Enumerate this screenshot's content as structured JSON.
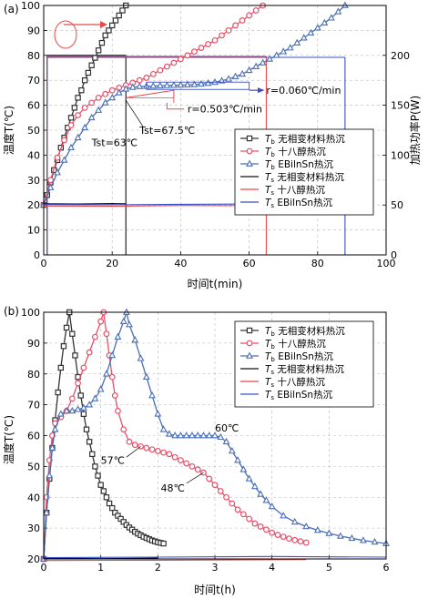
{
  "chart_data": [
    {
      "panel_label": "(a)",
      "type": "line",
      "xlabel": "时间t(min)",
      "ylabel": "温度T(℃)",
      "y2label": "加热功率P(W)",
      "xlim": [
        0,
        100
      ],
      "ylim": [
        0,
        100
      ],
      "y2lim": [
        0,
        250
      ],
      "xticks": [
        "0",
        "20",
        "40",
        "60",
        "80",
        "100"
      ],
      "yticks": [
        "0",
        "10",
        "20",
        "30",
        "40",
        "50",
        "60",
        "70",
        "80",
        "90",
        "100"
      ],
      "y2ticks": [
        "0",
        "50",
        "100",
        "150",
        "200"
      ],
      "legend_position": "center-right",
      "series": [
        {
          "name": "Tb 无相变材料热沉",
          "label_sub": "b",
          "label_rest": " 无相变材料热沉",
          "color": "#333333",
          "marker": "square",
          "x": [
            0,
            1,
            2,
            3,
            4,
            5,
            6,
            7,
            8,
            9,
            10,
            11,
            12,
            13,
            14,
            15,
            16,
            17,
            18,
            19,
            20,
            21,
            22,
            23,
            24
          ],
          "y": [
            20,
            24,
            29,
            34,
            38,
            43,
            47,
            51,
            55,
            59,
            63,
            66,
            70,
            73,
            76,
            79,
            82,
            85,
            88,
            90,
            92,
            94,
            96,
            98,
            100
          ]
        },
        {
          "name": "Tb 十八醇热沉",
          "label_sub": "b",
          "label_rest": " 十八醇热沉",
          "color": "#e8506a",
          "marker": "circle",
          "x": [
            0,
            2,
            4,
            6,
            8,
            10,
            12,
            14,
            16,
            18,
            20,
            22,
            24,
            26,
            28,
            30,
            32,
            34,
            36,
            38,
            40,
            42,
            44,
            46,
            48,
            50,
            52,
            54,
            56,
            58,
            60,
            62,
            64
          ],
          "y": [
            20,
            30,
            39,
            46,
            52,
            56,
            59,
            61,
            63,
            64.5,
            66,
            67,
            68,
            69,
            70,
            71,
            72.5,
            74,
            75.5,
            77,
            78.5,
            80,
            81.5,
            83,
            84.5,
            86,
            88,
            90,
            92,
            94,
            96,
            98,
            100
          ]
        },
        {
          "name": "Tb EBilnSn热沉",
          "label_sub": "b",
          "label_rest": " EBilnSn热沉",
          "color": "#4a6fb5",
          "marker": "triangle",
          "x": [
            0,
            2,
            4,
            6,
            8,
            10,
            12,
            14,
            16,
            18,
            20,
            22,
            24,
            26,
            28,
            30,
            32,
            34,
            36,
            38,
            40,
            42,
            44,
            46,
            48,
            50,
            52,
            54,
            56,
            58,
            60,
            62,
            64,
            66,
            68,
            70,
            72,
            74,
            76,
            78,
            80,
            82,
            84,
            86,
            88
          ],
          "y": [
            20,
            27,
            33,
            38,
            43,
            47,
            51,
            55,
            58,
            61,
            63,
            65,
            66.5,
            67.2,
            67.5,
            67.6,
            67.7,
            67.8,
            67.9,
            68,
            68.1,
            68.2,
            68.3,
            68.5,
            68.8,
            69.2,
            69.8,
            70.5,
            71.5,
            72.5,
            74,
            75.5,
            77,
            78.5,
            80,
            81.5,
            83,
            85,
            87,
            89,
            91,
            93,
            95,
            97.5,
            100
          ]
        },
        {
          "name": "Ts 无相变材料热沉",
          "label_sub": "s",
          "label_rest": " 无相变材料热沉",
          "color": "#111111",
          "marker": "none",
          "x": [
            0,
            10,
            20,
            24
          ],
          "y": [
            20.5,
            20.4,
            20.6,
            20.5
          ]
        },
        {
          "name": "Ts 十八醇热沉",
          "label_sub": "s",
          "label_rest": " 十八醇热沉",
          "color": "#e84a4a",
          "marker": "none",
          "x": [
            0,
            20,
            40,
            64
          ],
          "y": [
            19.6,
            19.5,
            19.8,
            19.7
          ]
        },
        {
          "name": "Ts EBilnSn热沉",
          "label_sub": "s",
          "label_rest": " EBilnSn热沉",
          "color": "#3b4fc8",
          "marker": "none",
          "x": [
            0,
            20,
            40,
            60,
            88
          ],
          "y": [
            20.2,
            20.1,
            20.3,
            20.4,
            20.5
          ]
        }
      ],
      "power_series": [
        {
          "name": "P 无相变材料热沉",
          "color": "#111111",
          "x": [
            1,
            24
          ],
          "y": [
            200,
            200
          ],
          "end_x": 24
        },
        {
          "name": "P 十八醇热沉",
          "color": "#e84a4a",
          "x": [
            1,
            65
          ],
          "y": [
            199,
            199
          ],
          "end_x": 65
        },
        {
          "name": "P EBilnSn热沉",
          "color": "#3b4fc8",
          "x": [
            1,
            88
          ],
          "y": [
            198,
            198
          ],
          "end_x": 88
        }
      ],
      "annotations": [
        {
          "text": "r=0.503℃/min",
          "x": 42,
          "y": 58.5
        },
        {
          "text": "r=0.060℃/min",
          "x": 65,
          "y": 65
        },
        {
          "text": "Tst=67.5℃",
          "x": 30,
          "y": 50
        },
        {
          "text": "Tst=63℃",
          "x": 18,
          "y": 45
        }
      ]
    },
    {
      "panel_label": "(b)",
      "type": "line",
      "xlabel": "时间t(h)",
      "ylabel": "温度T(℃)",
      "xlim": [
        0,
        6
      ],
      "ylim": [
        20,
        100
      ],
      "xticks": [
        "0",
        "1",
        "2",
        "3",
        "4",
        "5",
        "6"
      ],
      "yticks": [
        "20",
        "30",
        "40",
        "50",
        "60",
        "70",
        "80",
        "90",
        "100"
      ],
      "legend_position": "top-right",
      "series": [
        {
          "name": "Tb 无相变材料热沉",
          "label_sub": "b",
          "label_rest": " 无相变材料热沉",
          "color": "#333333",
          "marker": "square",
          "x": [
            0,
            0.05,
            0.1,
            0.15,
            0.2,
            0.25,
            0.3,
            0.35,
            0.4,
            0.45,
            0.5,
            0.55,
            0.6,
            0.65,
            0.7,
            0.75,
            0.8,
            0.85,
            0.9,
            0.95,
            1.0,
            1.05,
            1.1,
            1.15,
            1.2,
            1.25,
            1.3,
            1.35,
            1.4,
            1.45,
            1.5,
            1.55,
            1.6,
            1.65,
            1.7,
            1.75,
            1.8,
            1.85,
            1.9,
            1.95,
            2.0,
            2.05,
            2.1
          ],
          "y": [
            20,
            35,
            46,
            56,
            65,
            74,
            82,
            89,
            95,
            100,
            93,
            86,
            79,
            73,
            67,
            62,
            58,
            54,
            50,
            47,
            44,
            42,
            40,
            38,
            36.5,
            35,
            34,
            33,
            32,
            31,
            30.2,
            29.5,
            28.8,
            28.2,
            27.7,
            27.2,
            26.8,
            26.4,
            26,
            25.7,
            25.4,
            25.2,
            25
          ]
        },
        {
          "name": "Tb 十八醇热沉",
          "label_sub": "b",
          "label_rest": " 十八醇热沉",
          "color": "#e8506a",
          "marker": "circle",
          "x": [
            0,
            0.05,
            0.1,
            0.15,
            0.2,
            0.3,
            0.4,
            0.5,
            0.6,
            0.7,
            0.8,
            0.9,
            1.0,
            1.05,
            1.1,
            1.15,
            1.2,
            1.25,
            1.3,
            1.4,
            1.5,
            1.6,
            1.7,
            1.8,
            1.9,
            2.0,
            2.1,
            2.2,
            2.3,
            2.4,
            2.5,
            2.6,
            2.7,
            2.8,
            2.9,
            3.0,
            3.1,
            3.2,
            3.3,
            3.4,
            3.5,
            3.6,
            3.7,
            3.8,
            3.9,
            4.0,
            4.1,
            4.2,
            4.3,
            4.4,
            4.5,
            4.6
          ],
          "y": [
            20,
            40,
            52,
            60,
            64,
            66,
            68,
            72,
            77,
            82,
            87,
            92,
            97,
            100,
            93,
            86,
            79,
            73,
            68,
            62,
            58,
            57,
            56.5,
            56,
            55.5,
            55,
            54.5,
            54,
            53,
            52,
            51,
            50,
            49,
            48,
            46,
            44,
            42,
            40,
            38,
            36,
            34.5,
            33,
            31.5,
            30.5,
            29.5,
            28.5,
            27.8,
            27.2,
            26.6,
            26.1,
            25.7,
            25.3
          ]
        },
        {
          "name": "Tb EBilnSn热沉",
          "label_sub": "b",
          "label_rest": " EBilnSn热沉",
          "color": "#4a6fb5",
          "marker": "triangle",
          "x": [
            0,
            0.05,
            0.1,
            0.15,
            0.2,
            0.3,
            0.4,
            0.5,
            0.6,
            0.7,
            0.8,
            0.9,
            1.0,
            1.1,
            1.2,
            1.3,
            1.4,
            1.45,
            1.5,
            1.6,
            1.7,
            1.8,
            1.9,
            2.0,
            2.1,
            2.2,
            2.3,
            2.4,
            2.5,
            2.6,
            2.7,
            2.8,
            2.9,
            3.0,
            3.1,
            3.2,
            3.3,
            3.4,
            3.5,
            3.6,
            3.7,
            3.8,
            3.9,
            4.0,
            4.2,
            4.4,
            4.6,
            4.8,
            5.0,
            5.2,
            5.4,
            5.6,
            5.8,
            6.0
          ],
          "y": [
            20,
            35,
            47,
            56,
            62,
            67,
            68,
            68,
            68.5,
            69,
            70,
            72,
            75,
            80,
            86,
            92,
            97,
            100,
            96,
            91,
            85,
            79,
            73,
            67,
            62,
            60.5,
            60,
            60,
            60,
            60,
            60,
            60,
            60,
            60,
            59.5,
            58,
            55,
            52,
            49,
            46,
            43.5,
            41,
            39,
            37,
            34,
            32,
            30.5,
            29.3,
            28.3,
            27.4,
            26.7,
            26,
            25.5,
            25
          ]
        },
        {
          "name": "Ts 无相变材料热沉",
          "label_sub": "s",
          "label_rest": " 无相变材料热沉",
          "color": "#111111",
          "marker": "none",
          "x": [
            0,
            1,
            2
          ],
          "y": [
            20.2,
            20.1,
            20.3
          ]
        },
        {
          "name": "Ts 十八醇热沉",
          "label_sub": "s",
          "label_rest": " 十八醇热沉",
          "color": "#e84a4a",
          "marker": "none",
          "x": [
            0,
            2,
            4.6
          ],
          "y": [
            19.5,
            19.6,
            19.8
          ]
        },
        {
          "name": "Ts EBilnSn热沉",
          "label_sub": "s",
          "label_rest": " EBilnSn热沉",
          "color": "#3b4fc8",
          "marker": "none",
          "x": [
            0,
            2,
            4,
            6
          ],
          "y": [
            20.4,
            20.6,
            20.8,
            20.6
          ]
        }
      ],
      "annotations": [
        {
          "text": "60℃",
          "x": 3.05,
          "y": 62.5
        },
        {
          "text": "57℃",
          "x": 1.05,
          "y": 52
        },
        {
          "text": "48℃",
          "x": 2.1,
          "y": 43
        }
      ]
    }
  ]
}
